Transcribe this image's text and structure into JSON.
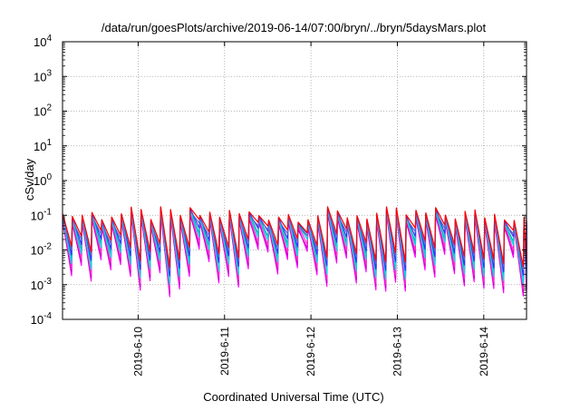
{
  "chart_data": {
    "type": "line",
    "title": "/data/run/goesPlots/archive/2019-06-14/07:00/bryn/../bryn/5daysMars.plot",
    "xlabel": "Coordinated Universal Time (UTC)",
    "ylabel": "cSv/day",
    "yscale": "log",
    "ylim_exponents": [
      -4,
      4
    ],
    "ytick_exponents": [
      -4,
      -3,
      -2,
      -1,
      0,
      1,
      2,
      3,
      4
    ],
    "xlim_days": [
      0,
      5.37
    ],
    "x_start_date": "2019-06-09 03:00",
    "xticks": [
      {
        "day": 0.875,
        "label": "2019-6-10"
      },
      {
        "day": 1.875,
        "label": "2019-6-11"
      },
      {
        "day": 2.875,
        "label": "2019-6-12"
      },
      {
        "day": 3.875,
        "label": "2019-6-13"
      },
      {
        "day": 4.875,
        "label": "2019-6-14"
      }
    ],
    "grid": true,
    "sawtooth": {
      "cycles_per_day": 8.8,
      "peak_log10_range": [
        -1.3,
        -0.85
      ],
      "trough_log10_range": [
        -3.0,
        -1.6
      ]
    },
    "series": [
      {
        "color": "#ff00ff",
        "peak_offset": -0.05,
        "trough_offset": -0.35
      },
      {
        "color": "#cc00cc",
        "peak_offset": -0.12,
        "trough_offset": -0.25
      },
      {
        "color": "#ff33cc",
        "peak_offset": 0.0,
        "trough_offset": -0.15
      },
      {
        "color": "#00aaaa",
        "peak_offset": 0.05,
        "trough_offset": 0.1
      },
      {
        "color": "#00dddd",
        "peak_offset": 0.02,
        "trough_offset": 0.0
      },
      {
        "color": "#3333ff",
        "peak_offset": 0.08,
        "trough_offset": 0.25
      },
      {
        "color": "#6666cc",
        "peak_offset": 0.0,
        "trough_offset": 0.4
      },
      {
        "color": "#ff0000",
        "peak_offset": 0.1,
        "trough_offset": 0.5
      }
    ]
  }
}
